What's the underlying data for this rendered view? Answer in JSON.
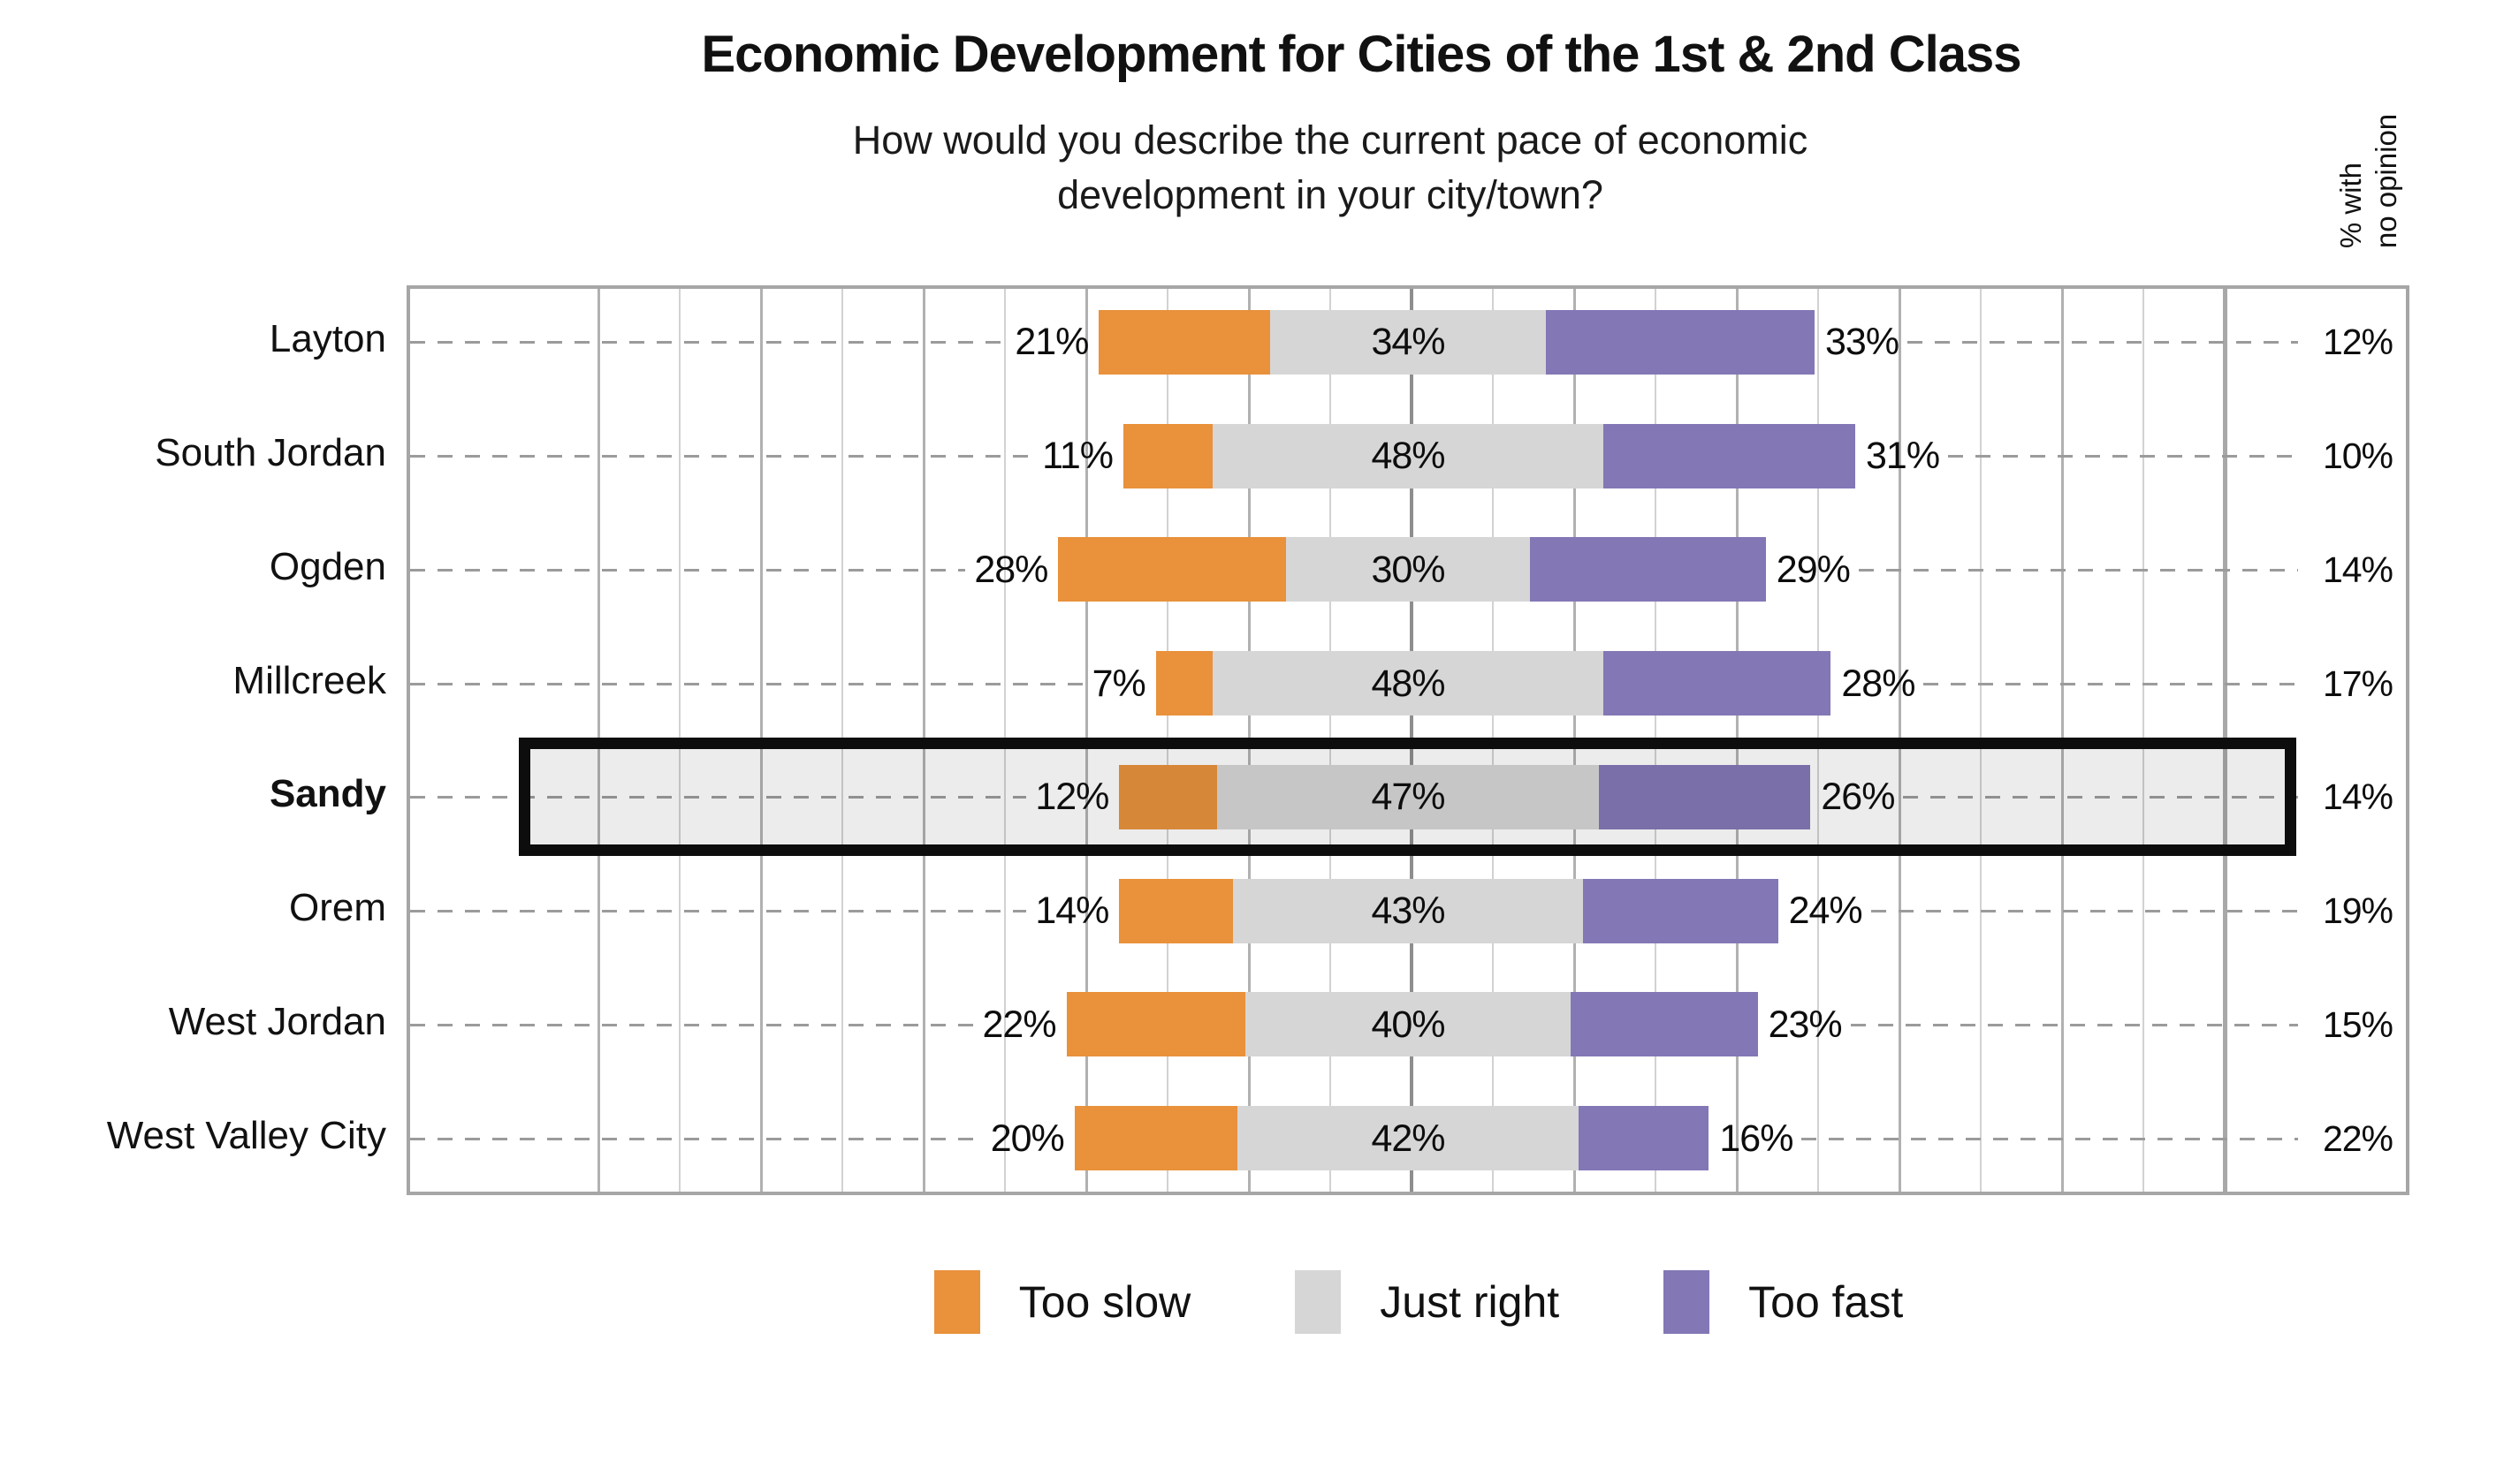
{
  "header": {
    "title": "Economic Development for Cities of the 1st & 2nd Class",
    "subtitle_line1": "How would you describe the current pace of economic",
    "subtitle_line2": "development in your city/town?"
  },
  "right_axis": {
    "line1": "% with",
    "line2": "no opinion"
  },
  "legend": {
    "items": [
      {
        "label": "Too slow",
        "color": "#e9913b"
      },
      {
        "label": "Just right",
        "color": "#d6d6d6"
      },
      {
        "label": "Too fast",
        "color": "#8377b6"
      }
    ]
  },
  "colors": {
    "too_slow": "#e9913b",
    "just_right": "#d6d6d6",
    "too_fast": "#8377b6",
    "plot_border": "#a6a6a6",
    "dashed_leader": "#9b9b9b",
    "highlight_border": "#0d0d0d"
  },
  "chart_data": {
    "type": "bar",
    "variant": "diverging_stacked_bar_horizontal",
    "title": "Economic Development for Cities of the 1st & 2nd Class",
    "question": "How would you describe the current pace of economic development in your city/town?",
    "categories": [
      "Layton",
      "South Jordan",
      "Ogden",
      "Millcreek",
      "Sandy",
      "Orem",
      "West Jordan",
      "West Valley City"
    ],
    "series": [
      {
        "name": "Too slow",
        "values": [
          21,
          11,
          28,
          7,
          12,
          14,
          22,
          20
        ]
      },
      {
        "name": "Just right",
        "values": [
          34,
          48,
          30,
          48,
          47,
          43,
          40,
          42
        ]
      },
      {
        "name": "Too fast",
        "values": [
          33,
          31,
          29,
          28,
          26,
          24,
          23,
          16
        ]
      }
    ],
    "no_opinion_column_label": "% with no opinion",
    "no_opinion": [
      12,
      10,
      14,
      17,
      14,
      19,
      15,
      22
    ],
    "highlighted_category": "Sandy",
    "value_suffix": "%",
    "gridlines": "vertical, every 10 points, center line emphasized",
    "legend_position": "bottom",
    "axis_hidden": true
  }
}
